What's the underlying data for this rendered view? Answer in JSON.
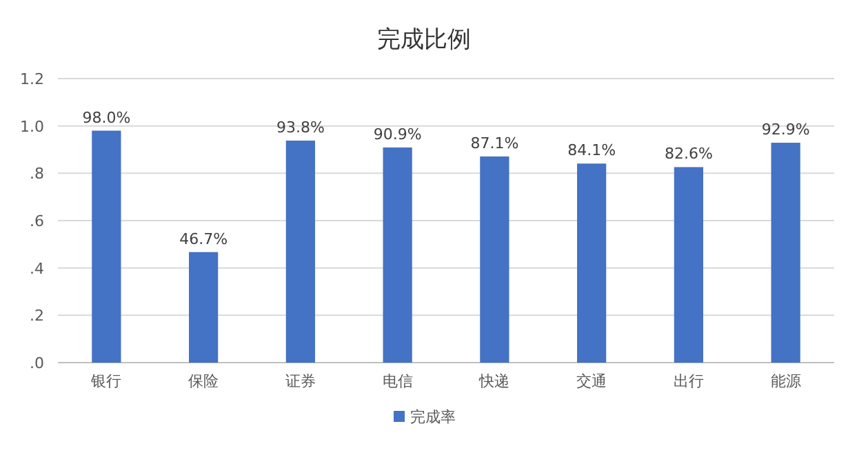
{
  "chart_data": {
    "type": "bar",
    "title": "完成比例",
    "categories": [
      "银行",
      "保险",
      "证券",
      "电信",
      "快递",
      "交通",
      "出行",
      "能源"
    ],
    "series": [
      {
        "name": "完成率",
        "color": "#4472c4",
        "values": [
          0.98,
          0.467,
          0.938,
          0.909,
          0.871,
          0.841,
          0.826,
          0.929
        ],
        "value_labels": [
          "98.0%",
          "46.7%",
          "93.8%",
          "90.9%",
          "87.1%",
          "84.1%",
          "82.6%",
          "92.9%"
        ]
      }
    ],
    "ylim": [
      0,
      1.2
    ],
    "yticks": [
      {
        "value": 0,
        "label": ".0"
      },
      {
        "value": 0.2,
        "label": ".2"
      },
      {
        "value": 0.4,
        "label": ".4"
      },
      {
        "value": 0.6,
        "label": ".6"
      },
      {
        "value": 0.8,
        "label": ".8"
      },
      {
        "value": 1.0,
        "label": "1.0"
      },
      {
        "value": 1.2,
        "label": "1.2"
      }
    ],
    "grid": "y",
    "legend": "bottom"
  }
}
